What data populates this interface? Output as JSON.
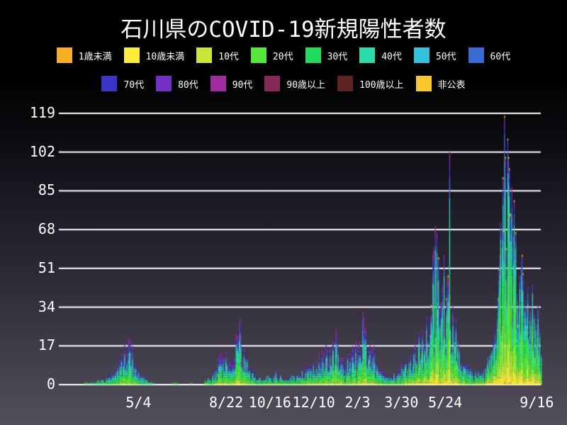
{
  "title": "石川県のCOVID-19新規陽性者数",
  "colors": {
    "background_top": "#000000",
    "background_bottom": "#524e5c",
    "text": "#ffffff",
    "gridline": "#ffffff"
  },
  "legend": {
    "rows": [
      [
        0,
        1,
        2,
        3,
        4,
        5,
        6,
        7
      ],
      [
        8,
        9,
        10,
        11,
        12,
        13
      ]
    ]
  },
  "chart_data": {
    "type": "stacked-bar",
    "title": "石川県のCOVID-19新規陽性者数",
    "xlabel": "",
    "ylabel": "",
    "grid": true,
    "legend_position": "top",
    "ylim": [
      0,
      119
    ],
    "y_ticks": [
      0,
      17,
      34,
      51,
      68,
      85,
      102,
      119
    ],
    "x_start_date": "2020-01-25",
    "x_end_date": "2021-09-16",
    "total_days": 605,
    "x_ticks": [
      {
        "label": "5/4",
        "day": 100
      },
      {
        "label": "8/22",
        "day": 210
      },
      {
        "label": "10/16",
        "day": 265
      },
      {
        "label": "12/10",
        "day": 320
      },
      {
        "label": "2/3",
        "day": 375
      },
      {
        "label": "3/30",
        "day": 430
      },
      {
        "label": "5/24",
        "day": 485
      },
      {
        "label": "9/16",
        "day": 600
      }
    ],
    "groups": [
      {
        "name": "1歳未満",
        "color": "#f9ae27",
        "share": 0.004
      },
      {
        "name": "10歳未満",
        "color": "#fdec3a",
        "share": 0.035
      },
      {
        "name": "10代",
        "color": "#c9e636",
        "share": 0.075
      },
      {
        "name": "20代",
        "color": "#57e63b",
        "share": 0.21
      },
      {
        "name": "30代",
        "color": "#21dd5d",
        "share": 0.165
      },
      {
        "name": "40代",
        "color": "#2cdcab",
        "share": 0.15
      },
      {
        "name": "50代",
        "color": "#33c1dd",
        "share": 0.115
      },
      {
        "name": "60代",
        "color": "#3a6ad4",
        "share": 0.08
      },
      {
        "name": "70代",
        "color": "#3a35c9",
        "share": 0.065
      },
      {
        "name": "80代",
        "color": "#7430c4",
        "share": 0.05
      },
      {
        "name": "90代",
        "color": "#a32ba0",
        "share": 0.028
      },
      {
        "name": "90歳以上",
        "color": "#84295a",
        "share": 0.012
      },
      {
        "name": "100歳以上",
        "color": "#5f2322",
        "share": 0.003
      },
      {
        "name": "非公表",
        "color": "#f9c62d",
        "share": 0.008
      }
    ],
    "envelope_daily_total": [
      [
        0,
        0
      ],
      [
        26,
        0
      ],
      [
        30,
        1
      ],
      [
        42,
        1
      ],
      [
        52,
        2
      ],
      [
        60,
        3
      ],
      [
        66,
        5
      ],
      [
        72,
        8
      ],
      [
        78,
        13
      ],
      [
        83,
        16
      ],
      [
        88,
        19
      ],
      [
        93,
        13
      ],
      [
        98,
        8
      ],
      [
        104,
        4
      ],
      [
        110,
        2
      ],
      [
        116,
        1
      ],
      [
        122,
        0
      ],
      [
        138,
        0
      ],
      [
        146,
        1
      ],
      [
        154,
        0
      ],
      [
        168,
        1
      ],
      [
        178,
        0
      ],
      [
        186,
        2
      ],
      [
        192,
        5
      ],
      [
        198,
        9
      ],
      [
        204,
        13
      ],
      [
        210,
        15
      ],
      [
        216,
        13
      ],
      [
        221,
        17
      ],
      [
        226,
        26
      ],
      [
        231,
        17
      ],
      [
        237,
        10
      ],
      [
        243,
        6
      ],
      [
        249,
        3
      ],
      [
        255,
        2
      ],
      [
        261,
        4
      ],
      [
        267,
        3
      ],
      [
        273,
        5
      ],
      [
        279,
        3
      ],
      [
        285,
        2
      ],
      [
        291,
        4
      ],
      [
        297,
        3
      ],
      [
        303,
        5
      ],
      [
        309,
        6
      ],
      [
        315,
        8
      ],
      [
        321,
        11
      ],
      [
        327,
        13
      ],
      [
        333,
        16
      ],
      [
        338,
        18
      ],
      [
        343,
        14
      ],
      [
        348,
        22
      ],
      [
        353,
        15
      ],
      [
        358,
        10
      ],
      [
        364,
        12
      ],
      [
        370,
        15
      ],
      [
        376,
        20
      ],
      [
        382,
        29
      ],
      [
        387,
        21
      ],
      [
        392,
        16
      ],
      [
        398,
        12
      ],
      [
        403,
        8
      ],
      [
        408,
        5
      ],
      [
        414,
        3
      ],
      [
        420,
        4
      ],
      [
        426,
        6
      ],
      [
        432,
        8
      ],
      [
        438,
        10
      ],
      [
        443,
        13
      ],
      [
        448,
        16
      ],
      [
        453,
        20
      ],
      [
        458,
        26
      ],
      [
        463,
        34
      ],
      [
        468,
        46
      ],
      [
        472,
        60
      ],
      [
        476,
        50
      ],
      [
        480,
        43
      ],
      [
        484,
        50
      ],
      [
        488,
        40
      ],
      [
        492,
        33
      ],
      [
        496,
        26
      ],
      [
        501,
        19
      ],
      [
        506,
        13
      ],
      [
        511,
        9
      ],
      [
        516,
        7
      ],
      [
        521,
        5
      ],
      [
        526,
        7
      ],
      [
        531,
        5
      ],
      [
        536,
        8
      ],
      [
        541,
        12
      ],
      [
        546,
        18
      ],
      [
        550,
        30
      ],
      [
        553,
        50
      ],
      [
        556,
        80
      ],
      [
        559,
        108
      ],
      [
        562,
        88
      ],
      [
        565,
        92
      ],
      [
        568,
        82
      ],
      [
        572,
        68
      ],
      [
        576,
        62
      ],
      [
        580,
        52
      ],
      [
        584,
        58
      ],
      [
        588,
        46
      ],
      [
        592,
        42
      ],
      [
        596,
        36
      ],
      [
        600,
        30
      ],
      [
        604,
        26
      ]
    ],
    "peaks": [
      [
        88,
        19
      ],
      [
        226,
        27
      ],
      [
        348,
        22
      ],
      [
        382,
        30
      ],
      [
        472,
        70
      ],
      [
        490,
        102
      ],
      [
        559,
        118
      ],
      [
        565,
        95
      ]
    ]
  }
}
